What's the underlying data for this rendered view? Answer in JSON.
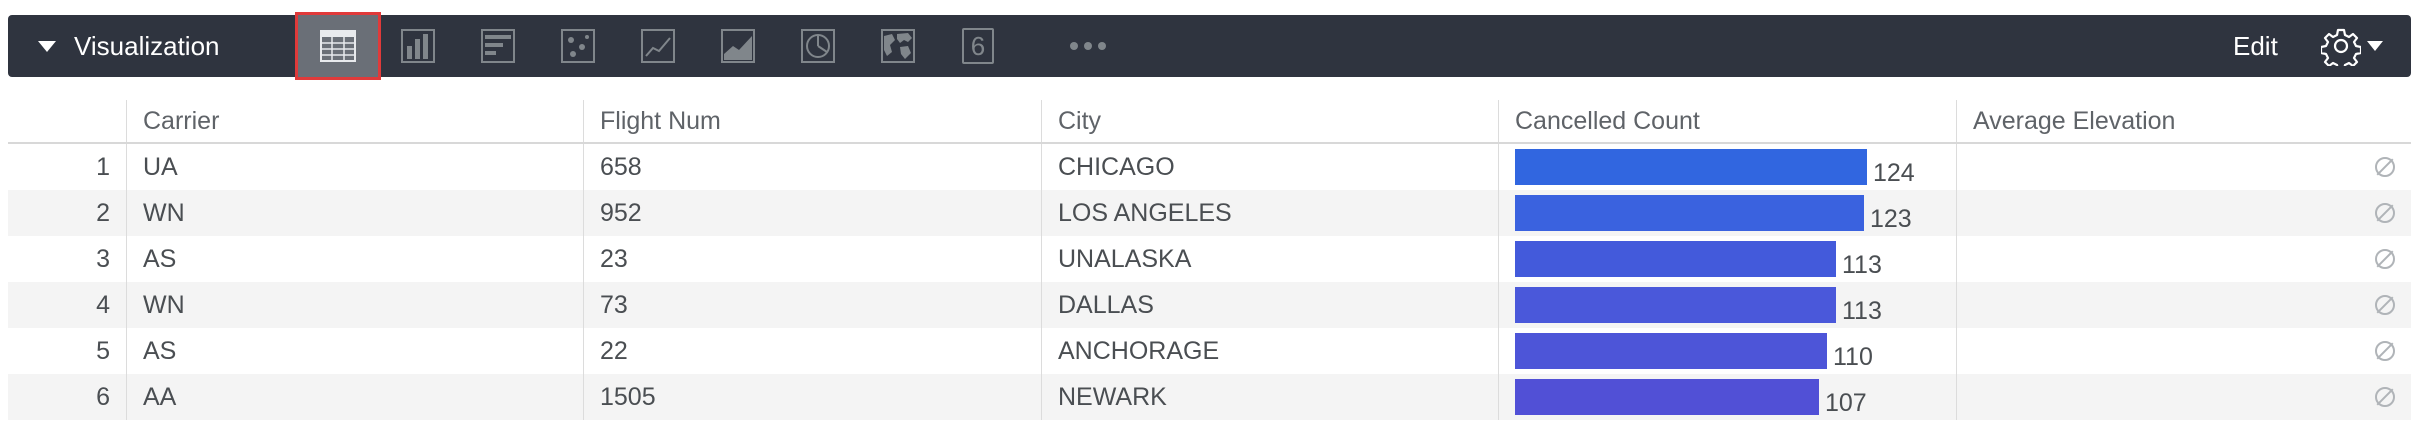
{
  "toolbar": {
    "title": "Visualization",
    "edit_label": "Edit",
    "custom_vis_number": "6",
    "icons": [
      "table-icon",
      "column-chart-icon",
      "bar-chart-icon",
      "scatter-chart-icon",
      "line-chart-icon",
      "area-chart-icon",
      "pie-chart-icon",
      "map-icon",
      "single-value-icon",
      "more-icon",
      "gear-icon"
    ]
  },
  "table": {
    "columns": [
      "Carrier",
      "Flight Num",
      "City",
      "Cancelled Count",
      "Average Elevation"
    ],
    "max_cancelled": 124,
    "rows": [
      {
        "index": "1",
        "carrier": "UA",
        "flight_num": "658",
        "city": "CHICAGO",
        "cancelled": 124,
        "color": "#3166e0"
      },
      {
        "index": "2",
        "carrier": "WN",
        "flight_num": "952",
        "city": "LOS ANGELES",
        "cancelled": 123,
        "color": "#3a62df"
      },
      {
        "index": "3",
        "carrier": "AS",
        "flight_num": "23",
        "city": "UNALASKA",
        "cancelled": 113,
        "color": "#435adb"
      },
      {
        "index": "4",
        "carrier": "WN",
        "flight_num": "73",
        "city": "DALLAS",
        "cancelled": 113,
        "color": "#4a58da"
      },
      {
        "index": "5",
        "carrier": "AS",
        "flight_num": "22",
        "city": "ANCHORAGE",
        "cancelled": 110,
        "color": "#4d55d8"
      },
      {
        "index": "6",
        "carrier": "AA",
        "flight_num": "1505",
        "city": "NEWARK",
        "cancelled": 107,
        "color": "#5150d6"
      }
    ]
  }
}
